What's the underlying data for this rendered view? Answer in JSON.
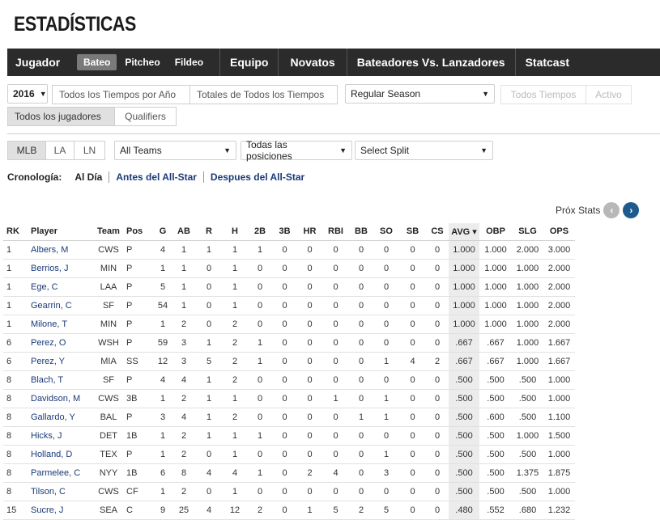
{
  "page": {
    "title": "ESTADÍSTICAS"
  },
  "nav": {
    "jugador": "Jugador",
    "sub": [
      {
        "label": "Bateo",
        "active": true
      },
      {
        "label": "Pitcheo",
        "active": false
      },
      {
        "label": "Fildeo",
        "active": false
      }
    ],
    "tabs": [
      "Equipo",
      "Novatos",
      "Bateadores Vs. Lanzadores",
      "Statcast"
    ]
  },
  "filters": {
    "season": "2016",
    "todos_tiempos_por_ano": "Todos los Tiempos por Año",
    "totales_todos_tiempos": "Totales de Todos los Tiempos",
    "season_type": "Regular Season",
    "todos_tiempos": "Todos Tiempos",
    "activo": "Activo",
    "todos_jugadores": "Todos los jugadores",
    "qualifiers": "Qualifiers",
    "leagues": [
      "MLB",
      "LA",
      "LN"
    ],
    "team": "All Teams",
    "position": "Todas las posiciones",
    "split": "Select Split"
  },
  "cronologia": {
    "label": "Cronología:",
    "items": [
      "Al Día",
      "Antes del All-Star",
      "Despues del All-Star"
    ]
  },
  "pager": {
    "label": "Próx Stats"
  },
  "table": {
    "headers": [
      "RK",
      "Player",
      "Team",
      "Pos",
      "G",
      "AB",
      "R",
      "H",
      "2B",
      "3B",
      "HR",
      "RBI",
      "BB",
      "SO",
      "SB",
      "CS",
      "AVG ▾",
      "OBP",
      "SLG",
      "OPS"
    ],
    "rows": [
      [
        "1",
        "Albers, M",
        "CWS",
        "P",
        "4",
        "1",
        "1",
        "1",
        "1",
        "0",
        "0",
        "0",
        "0",
        "0",
        "0",
        "0",
        "1.000",
        "1.000",
        "2.000",
        "3.000"
      ],
      [
        "1",
        "Berrios, J",
        "MIN",
        "P",
        "1",
        "1",
        "0",
        "1",
        "0",
        "0",
        "0",
        "0",
        "0",
        "0",
        "0",
        "0",
        "1.000",
        "1.000",
        "1.000",
        "2.000"
      ],
      [
        "1",
        "Ege, C",
        "LAA",
        "P",
        "5",
        "1",
        "0",
        "1",
        "0",
        "0",
        "0",
        "0",
        "0",
        "0",
        "0",
        "0",
        "1.000",
        "1.000",
        "1.000",
        "2.000"
      ],
      [
        "1",
        "Gearrin, C",
        "SF",
        "P",
        "54",
        "1",
        "0",
        "1",
        "0",
        "0",
        "0",
        "0",
        "0",
        "0",
        "0",
        "0",
        "1.000",
        "1.000",
        "1.000",
        "2.000"
      ],
      [
        "1",
        "Milone, T",
        "MIN",
        "P",
        "1",
        "2",
        "0",
        "2",
        "0",
        "0",
        "0",
        "0",
        "0",
        "0",
        "0",
        "0",
        "1.000",
        "1.000",
        "1.000",
        "2.000"
      ],
      [
        "6",
        "Perez, O",
        "WSH",
        "P",
        "59",
        "3",
        "1",
        "2",
        "1",
        "0",
        "0",
        "0",
        "0",
        "0",
        "0",
        "0",
        ".667",
        ".667",
        "1.000",
        "1.667"
      ],
      [
        "6",
        "Perez, Y",
        "MIA",
        "SS",
        "12",
        "3",
        "5",
        "2",
        "1",
        "0",
        "0",
        "0",
        "0",
        "1",
        "4",
        "2",
        ".667",
        ".667",
        "1.000",
        "1.667"
      ],
      [
        "8",
        "Blach, T",
        "SF",
        "P",
        "4",
        "4",
        "1",
        "2",
        "0",
        "0",
        "0",
        "0",
        "0",
        "0",
        "0",
        "0",
        ".500",
        ".500",
        ".500",
        "1.000"
      ],
      [
        "8",
        "Davidson, M",
        "CWS",
        "3B",
        "1",
        "2",
        "1",
        "1",
        "0",
        "0",
        "0",
        "1",
        "0",
        "1",
        "0",
        "0",
        ".500",
        ".500",
        ".500",
        "1.000"
      ],
      [
        "8",
        "Gallardo, Y",
        "BAL",
        "P",
        "3",
        "4",
        "1",
        "2",
        "0",
        "0",
        "0",
        "0",
        "1",
        "1",
        "0",
        "0",
        ".500",
        ".600",
        ".500",
        "1.100"
      ],
      [
        "8",
        "Hicks, J",
        "DET",
        "1B",
        "1",
        "2",
        "1",
        "1",
        "1",
        "0",
        "0",
        "0",
        "0",
        "0",
        "0",
        "0",
        ".500",
        ".500",
        "1.000",
        "1.500"
      ],
      [
        "8",
        "Holland, D",
        "TEX",
        "P",
        "1",
        "2",
        "0",
        "1",
        "0",
        "0",
        "0",
        "0",
        "0",
        "1",
        "0",
        "0",
        ".500",
        ".500",
        ".500",
        "1.000"
      ],
      [
        "8",
        "Parmelee, C",
        "NYY",
        "1B",
        "6",
        "8",
        "4",
        "4",
        "1",
        "0",
        "2",
        "4",
        "0",
        "3",
        "0",
        "0",
        ".500",
        ".500",
        "1.375",
        "1.875"
      ],
      [
        "8",
        "Tilson, C",
        "CWS",
        "CF",
        "1",
        "2",
        "0",
        "1",
        "0",
        "0",
        "0",
        "0",
        "0",
        "0",
        "0",
        "0",
        ".500",
        ".500",
        ".500",
        "1.000"
      ],
      [
        "15",
        "Sucre, J",
        "SEA",
        "C",
        "9",
        "25",
        "4",
        "12",
        "2",
        "0",
        "1",
        "5",
        "2",
        "5",
        "0",
        "0",
        ".480",
        ".552",
        ".680",
        "1.232"
      ]
    ]
  }
}
